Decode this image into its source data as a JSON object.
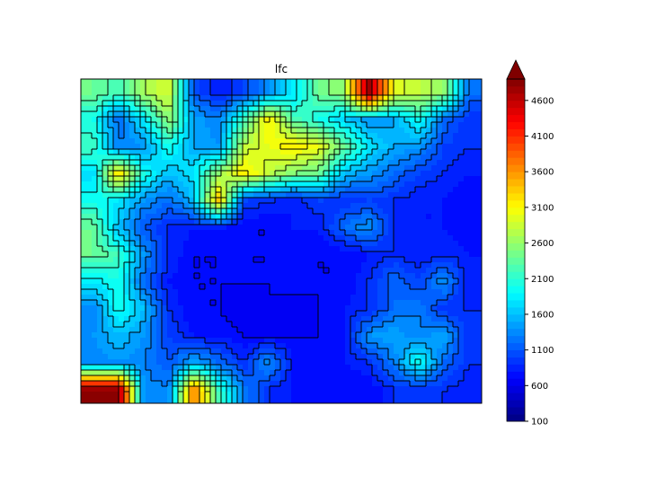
{
  "chart_data": {
    "type": "heatmap",
    "subtype": "filled-contour",
    "title": "lfc",
    "xlabel": "",
    "ylabel": "",
    "colormap": "jet",
    "axes_visible": false,
    "colorbar": {
      "min": 100,
      "max": 4900,
      "level_step": 100,
      "extend": "max",
      "extend_color": "#800000",
      "ticks": [
        100,
        600,
        1100,
        1600,
        2100,
        2600,
        3100,
        3600,
        4100,
        4600
      ],
      "location": "right"
    },
    "grid_values_note_units": "lfc",
    "grid": [
      [
        2400,
        2200,
        2700,
        2900,
        1100,
        800,
        1000,
        1400,
        1800,
        2400,
        2600,
        4800,
        3000,
        2800,
        2600,
        1200
      ],
      [
        2000,
        1200,
        1800,
        2600,
        1500,
        1300,
        2200,
        3200,
        2300,
        2000,
        1700,
        1400,
        1500,
        2000,
        1200,
        900
      ],
      [
        2200,
        1300,
        1400,
        2000,
        1500,
        1400,
        2800,
        3000,
        3200,
        3000,
        2400,
        1800,
        1500,
        1400,
        1000,
        900
      ],
      [
        1700,
        3300,
        2000,
        1600,
        1800,
        2600,
        3200,
        2800,
        2500,
        2400,
        1600,
        1400,
        1200,
        1000,
        900,
        800
      ],
      [
        2000,
        1800,
        1400,
        1200,
        1600,
        3400,
        1000,
        900,
        800,
        1000,
        900,
        1000,
        900,
        800,
        800,
        700
      ],
      [
        2400,
        1600,
        1100,
        900,
        800,
        800,
        700,
        700,
        800,
        800,
        1200,
        1400,
        900,
        800,
        800,
        700
      ],
      [
        2400,
        2200,
        1400,
        900,
        700,
        700,
        700,
        700,
        700,
        700,
        700,
        800,
        900,
        800,
        900,
        800
      ],
      [
        1800,
        2000,
        1200,
        800,
        700,
        700,
        700,
        700,
        800,
        700,
        700,
        900,
        1200,
        1000,
        1400,
        800
      ],
      [
        1300,
        2000,
        1600,
        900,
        700,
        700,
        600,
        700,
        600,
        700,
        800,
        900,
        1200,
        1300,
        900,
        900
      ],
      [
        1400,
        1600,
        1400,
        1000,
        800,
        800,
        700,
        700,
        700,
        700,
        800,
        1400,
        1500,
        1300,
        1500,
        900
      ],
      [
        1300,
        1400,
        1300,
        1100,
        1500,
        1200,
        900,
        1400,
        800,
        700,
        800,
        900,
        1300,
        2000,
        1200,
        900
      ],
      [
        4900,
        4900,
        1400,
        1300,
        3800,
        2200,
        1300,
        900,
        800,
        700,
        700,
        700,
        900,
        900,
        900,
        800
      ]
    ]
  }
}
